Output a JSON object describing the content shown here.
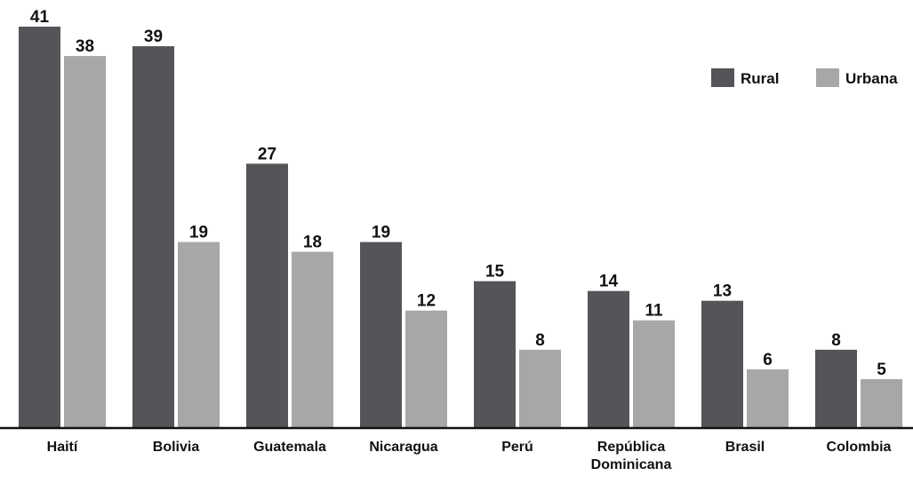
{
  "chart_data": {
    "type": "bar",
    "categories": [
      "Haití",
      "Bolivia",
      "Guatemala",
      "Nicaragua",
      "Perú",
      "República Dominicana",
      "Brasil",
      "Colombia"
    ],
    "series": [
      {
        "name": "Rural",
        "color": "#555559",
        "values": [
          41,
          39,
          27,
          19,
          15,
          14,
          13,
          8
        ]
      },
      {
        "name": "Urbana",
        "color": "#a7a7aa",
        "values": [
          38,
          19,
          18,
          12,
          8,
          11,
          6,
          5
        ]
      }
    ],
    "ylim": [
      0,
      41
    ],
    "grid": false,
    "legend_position": "top-right",
    "axis_color": "#111111"
  }
}
